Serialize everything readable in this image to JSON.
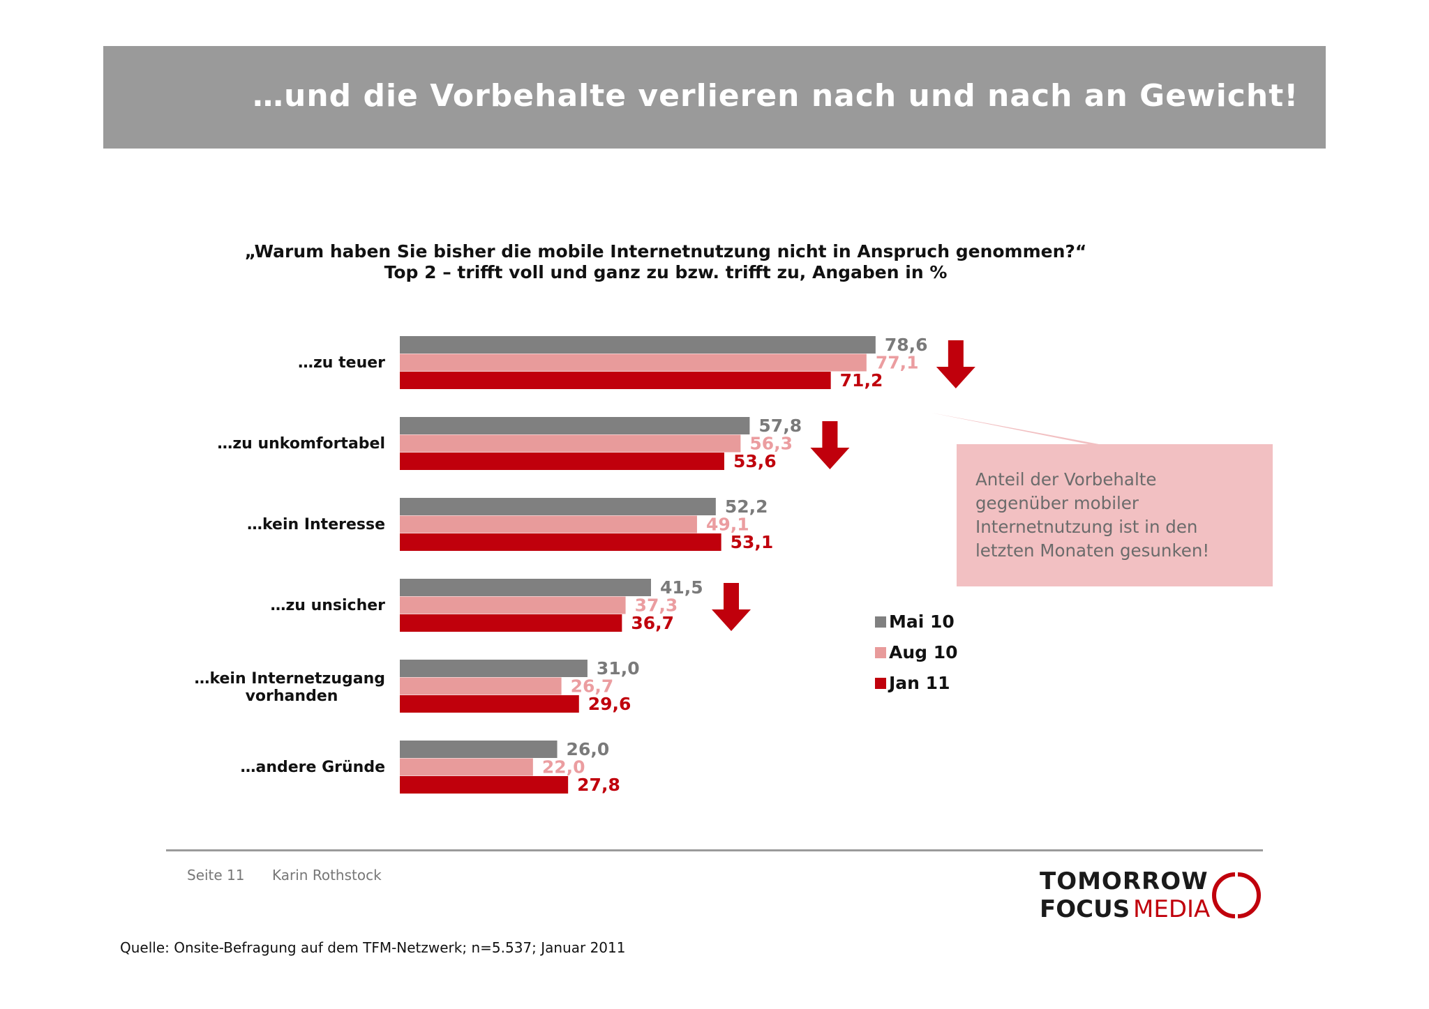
{
  "header": {
    "title": "…und die Vorbehalte verlieren nach und nach an Gewicht!"
  },
  "chart_data": {
    "type": "bar",
    "orientation": "horizontal",
    "title": "„Warum haben Sie bisher die mobile Internetnutzung nicht in Anspruch genommen?“",
    "subtitle": "Top 2 – trifft voll und ganz zu bzw. trifft zu, Angaben in %",
    "categories": [
      "…zu teuer",
      "…zu unkomfortabel",
      "…kein Interesse",
      "…zu unsicher",
      "…kein Internetzugang vorhanden",
      "…andere Gründe"
    ],
    "series": [
      {
        "name": "Mai 10",
        "color": "#808080",
        "values": [
          78.6,
          57.8,
          52.2,
          41.5,
          31.0,
          26.0
        ],
        "labels": [
          "78,6",
          "57,8",
          "52,2",
          "41,5",
          "31,0",
          "26,0"
        ]
      },
      {
        "name": "Aug 10",
        "color": "#e89b9b",
        "values": [
          77.1,
          56.3,
          49.1,
          37.3,
          26.7,
          22.0
        ],
        "labels": [
          "77,1",
          "56,3",
          "49,1",
          "37,3",
          "26,7",
          "22,0"
        ]
      },
      {
        "name": "Jan 11",
        "color": "#c0000c",
        "values": [
          71.2,
          53.6,
          53.1,
          36.7,
          29.6,
          27.8
        ],
        "labels": [
          "71,2",
          "53,6",
          "53,1",
          "36,7",
          "29,6",
          "27,8"
        ]
      }
    ],
    "xlim": [
      0,
      100
    ],
    "legend_position": "right",
    "grid": false,
    "down_arrows_on": [
      "…zu teuer",
      "…zu unkomfortabel",
      "…zu unsicher"
    ]
  },
  "callout": {
    "text": "Anteil der Vorbehalte gegenüber mobiler Internetnutzung ist in den letzten Monaten gesunken!"
  },
  "footer": {
    "page": "Seite 11",
    "author": "Karin Rothstock",
    "source": "Quelle: Onsite-Befragung auf dem TFM-Netzwerk; n=5.537; Januar 2011"
  },
  "logo": {
    "line1": "TOMORROW",
    "line2a": "FOCUS",
    "line2b": "MEDIA"
  }
}
